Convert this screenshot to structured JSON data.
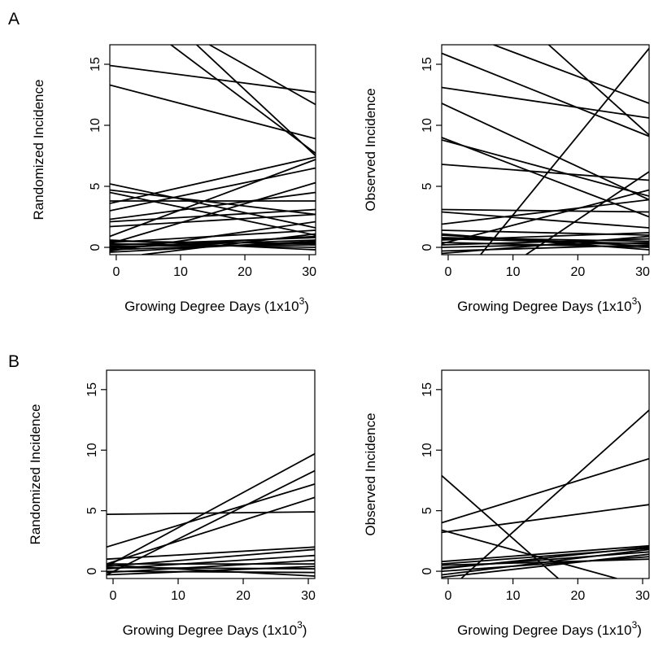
{
  "figure": {
    "panel_letters": [
      "A",
      "B"
    ]
  },
  "chart_data": [
    {
      "type": "line",
      "panel": "A",
      "xlabel": "Growing Degree Days (1x10",
      "xlabel_sup": "3",
      "xlabel_close": ")",
      "ylabel": "Randomized Incidence",
      "xlim": [
        -1,
        31
      ],
      "ylim": [
        -0.6,
        16.6
      ],
      "xticks": [
        0,
        10,
        20,
        30
      ],
      "yticks": [
        0,
        5,
        10,
        15
      ],
      "grid": false,
      "series": [
        {
          "x": [
            -1,
            31
          ],
          "values": [
            14.9,
            12.7
          ]
        },
        {
          "x": [
            -1,
            31
          ],
          "values": [
            13.3,
            8.9
          ]
        },
        {
          "x": [
            12.5,
            31
          ],
          "values": [
            16.6,
            7.5
          ]
        },
        {
          "x": [
            8.5,
            31
          ],
          "values": [
            16.6,
            7.7
          ]
        },
        {
          "x": [
            14.5,
            31
          ],
          "values": [
            16.6,
            11.7
          ]
        },
        {
          "x": [
            -1,
            31
          ],
          "values": [
            5.2,
            1.6
          ]
        },
        {
          "x": [
            -1,
            31
          ],
          "values": [
            4.7,
            2.7
          ]
        },
        {
          "x": [
            -1,
            31
          ],
          "values": [
            4.5,
            1.0
          ]
        },
        {
          "x": [
            -1,
            31
          ],
          "values": [
            3.6,
            7.4
          ]
        },
        {
          "x": [
            -1,
            31
          ],
          "values": [
            3.8,
            3.8
          ]
        },
        {
          "x": [
            -1,
            31
          ],
          "values": [
            3.0,
            6.5
          ]
        },
        {
          "x": [
            -1,
            31
          ],
          "values": [
            2.3,
            4.5
          ]
        },
        {
          "x": [
            -1,
            31
          ],
          "values": [
            2.1,
            3.1
          ]
        },
        {
          "x": [
            -1,
            31
          ],
          "values": [
            1.7,
            2.7
          ]
        },
        {
          "x": [
            -1,
            31
          ],
          "values": [
            0.9,
            7.2
          ]
        },
        {
          "x": [
            -1,
            31
          ],
          "values": [
            0.3,
            5.3
          ]
        },
        {
          "x": [
            -1,
            31
          ],
          "values": [
            -0.3,
            2.1
          ]
        },
        {
          "x": [
            -1,
            31
          ],
          "values": [
            0.4,
            1.4
          ]
        },
        {
          "x": [
            -1,
            31
          ],
          "values": [
            0.2,
            0.8
          ]
        },
        {
          "x": [
            -1,
            31
          ],
          "values": [
            0.0,
            0.6
          ]
        },
        {
          "x": [
            -1,
            31
          ],
          "values": [
            -0.4,
            0.5
          ]
        },
        {
          "x": [
            -1,
            31
          ],
          "values": [
            0.1,
            0.2
          ]
        },
        {
          "x": [
            -1,
            31
          ],
          "values": [
            0.5,
            0.3
          ]
        },
        {
          "x": [
            -1,
            31
          ],
          "values": [
            0.6,
            -0.2
          ]
        },
        {
          "x": [
            -1,
            31
          ],
          "values": [
            -0.1,
            0.9
          ]
        },
        {
          "x": [
            -1,
            31
          ],
          "values": [
            0.3,
            0.0
          ]
        },
        {
          "x": [
            -1,
            31
          ],
          "values": [
            -0.2,
            0.4
          ]
        },
        {
          "x": [
            4,
            31
          ],
          "values": [
            -0.6,
            1.1
          ]
        }
      ]
    },
    {
      "type": "line",
      "panel": "A",
      "xlabel": "Growing Degree Days (1x10",
      "xlabel_sup": "3",
      "xlabel_close": ")",
      "ylabel": "Observed Incidence",
      "xlim": [
        -1,
        31
      ],
      "ylim": [
        -0.6,
        16.6
      ],
      "xticks": [
        0,
        10,
        20,
        30
      ],
      "yticks": [
        0,
        5,
        10,
        15
      ],
      "grid": false,
      "series": [
        {
          "x": [
            -1,
            31
          ],
          "values": [
            15.9,
            9.1
          ]
        },
        {
          "x": [
            -1,
            31
          ],
          "values": [
            13.1,
            10.6
          ]
        },
        {
          "x": [
            7,
            31
          ],
          "values": [
            16.6,
            11.8
          ]
        },
        {
          "x": [
            15.5,
            31
          ],
          "values": [
            16.6,
            9.2
          ]
        },
        {
          "x": [
            -1,
            31
          ],
          "values": [
            11.8,
            3.9
          ]
        },
        {
          "x": [
            -1,
            31
          ],
          "values": [
            9.0,
            2.5
          ]
        },
        {
          "x": [
            -1,
            31
          ],
          "values": [
            8.8,
            4.2
          ]
        },
        {
          "x": [
            -1,
            31
          ],
          "values": [
            6.8,
            5.5
          ]
        },
        {
          "x": [
            5,
            31
          ],
          "values": [
            -0.6,
            16.3
          ]
        },
        {
          "x": [
            -1,
            31
          ],
          "values": [
            3.1,
            2.9
          ]
        },
        {
          "x": [
            -1,
            31
          ],
          "values": [
            2.9,
            1.6
          ]
        },
        {
          "x": [
            -1,
            31
          ],
          "values": [
            1.9,
            3.9
          ]
        },
        {
          "x": [
            -1,
            31
          ],
          "values": [
            1.4,
            1.0
          ]
        },
        {
          "x": [
            -1,
            31
          ],
          "values": [
            1.0,
            0.1
          ]
        },
        {
          "x": [
            -1,
            31
          ],
          "values": [
            0.8,
            0.5
          ]
        },
        {
          "x": [
            -1,
            31
          ],
          "values": [
            0.6,
            1.2
          ]
        },
        {
          "x": [
            -1,
            31
          ],
          "values": [
            0.4,
            0.0
          ]
        },
        {
          "x": [
            -1,
            31
          ],
          "values": [
            0.2,
            0.7
          ]
        },
        {
          "x": [
            -1,
            31
          ],
          "values": [
            0.0,
            0.4
          ]
        },
        {
          "x": [
            -1,
            31
          ],
          "values": [
            -0.3,
            0.2
          ]
        },
        {
          "x": [
            -1,
            31
          ],
          "values": [
            1.1,
            -0.2
          ]
        },
        {
          "x": [
            -1,
            31
          ],
          "values": [
            0.3,
            4.7
          ]
        },
        {
          "x": [
            12,
            31
          ],
          "values": [
            -0.6,
            6.2
          ]
        },
        {
          "x": [
            -1,
            31
          ],
          "values": [
            -0.5,
            0.9
          ]
        },
        {
          "x": [
            -1,
            31
          ],
          "values": [
            0.7,
            0.3
          ]
        }
      ]
    },
    {
      "type": "line",
      "panel": "B",
      "xlabel": "Growing Degree Days (1x10",
      "xlabel_sup": "3",
      "xlabel_close": ")",
      "ylabel": "Randomized Incidence",
      "xlim": [
        -1,
        31
      ],
      "ylim": [
        -0.6,
        16.6
      ],
      "xticks": [
        0,
        10,
        20,
        30
      ],
      "yticks": [
        0,
        5,
        10,
        15
      ],
      "grid": false,
      "series": [
        {
          "x": [
            -1,
            31
          ],
          "values": [
            4.7,
            4.9
          ]
        },
        {
          "x": [
            -1,
            31
          ],
          "values": [
            0.4,
            9.7
          ]
        },
        {
          "x": [
            -1,
            31
          ],
          "values": [
            -0.3,
            8.3
          ]
        },
        {
          "x": [
            -1,
            31
          ],
          "values": [
            2.0,
            7.2
          ]
        },
        {
          "x": [
            -1,
            31
          ],
          "values": [
            0.6,
            6.1
          ]
        },
        {
          "x": [
            -1,
            31
          ],
          "values": [
            1.0,
            2.0
          ]
        },
        {
          "x": [
            -1,
            31
          ],
          "values": [
            0.4,
            1.8
          ]
        },
        {
          "x": [
            -1,
            31
          ],
          "values": [
            0.2,
            1.3
          ]
        },
        {
          "x": [
            -1,
            31
          ],
          "values": [
            -0.1,
            0.9
          ]
        },
        {
          "x": [
            -1,
            31
          ],
          "values": [
            0.6,
            0.6
          ]
        },
        {
          "x": [
            -1,
            31
          ],
          "values": [
            0.3,
            0.2
          ]
        },
        {
          "x": [
            -1,
            31
          ],
          "values": [
            0.0,
            -0.1
          ]
        },
        {
          "x": [
            -1,
            31
          ],
          "values": [
            -0.3,
            0.4
          ]
        },
        {
          "x": [
            -1,
            31
          ],
          "values": [
            0.5,
            -0.4
          ]
        }
      ]
    },
    {
      "type": "line",
      "panel": "B",
      "xlabel": "Growing Degree Days (1x10",
      "xlabel_sup": "3",
      "xlabel_close": ")",
      "ylabel": "Observed Incidence",
      "xlim": [
        -1,
        31
      ],
      "ylim": [
        -0.6,
        16.6
      ],
      "xticks": [
        0,
        10,
        20,
        30
      ],
      "yticks": [
        0,
        5,
        10,
        15
      ],
      "grid": false,
      "series": [
        {
          "x": [
            -1,
            31
          ],
          "values": [
            4.0,
            9.3
          ]
        },
        {
          "x": [
            -1,
            31
          ],
          "values": [
            3.2,
            5.5
          ]
        },
        {
          "x": [
            -1,
            17
          ],
          "values": [
            7.9,
            -0.6
          ]
        },
        {
          "x": [
            2,
            31
          ],
          "values": [
            -0.6,
            13.3
          ]
        },
        {
          "x": [
            -1,
            26
          ],
          "values": [
            3.4,
            -0.6
          ]
        },
        {
          "x": [
            -1,
            31
          ],
          "values": [
            0.8,
            2.1
          ]
        },
        {
          "x": [
            -1,
            31
          ],
          "values": [
            0.6,
            1.9
          ]
        },
        {
          "x": [
            -1,
            31
          ],
          "values": [
            0.3,
            1.6
          ]
        },
        {
          "x": [
            -1,
            31
          ],
          "values": [
            0.0,
            1.2
          ]
        },
        {
          "x": [
            -1,
            31
          ],
          "values": [
            -0.3,
            1.8
          ]
        },
        {
          "x": [
            -1,
            31
          ],
          "values": [
            0.5,
            1.0
          ]
        },
        {
          "x": [
            -1,
            31
          ],
          "values": [
            0.2,
            2.0
          ]
        },
        {
          "x": [
            -1,
            31
          ],
          "values": [
            -0.5,
            1.4
          ]
        }
      ]
    }
  ]
}
